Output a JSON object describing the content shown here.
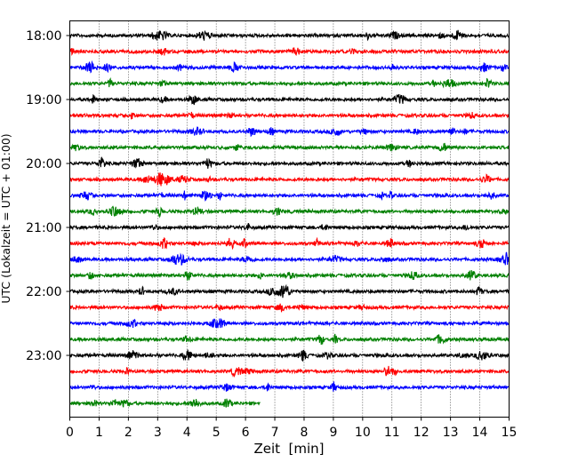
{
  "chart_data": {
    "type": "line",
    "title": "",
    "xlabel": "Zeit  [min]",
    "ylabel": "UTC (Lokalzeit = UTC + 01:00)",
    "xlim": [
      0,
      15
    ],
    "xticks": [
      "0",
      "1",
      "2",
      "3",
      "4",
      "5",
      "6",
      "7",
      "8",
      "9",
      "10",
      "11",
      "12",
      "13",
      "14",
      "15"
    ],
    "yticks": [
      "18:00",
      "19:00",
      "20:00",
      "21:00",
      "22:00",
      "23:00"
    ],
    "grid": "vertical dotted lines at each minute",
    "trace_colors": [
      "#000000",
      "#ff0000",
      "#0000ff",
      "#008000"
    ],
    "trace_interval_minutes": 15,
    "traces": [
      {
        "start": "18:00",
        "color": "#000000",
        "duration_min": 15
      },
      {
        "start": "18:15",
        "color": "#ff0000",
        "duration_min": 15
      },
      {
        "start": "18:30",
        "color": "#0000ff",
        "duration_min": 15
      },
      {
        "start": "18:45",
        "color": "#008000",
        "duration_min": 15
      },
      {
        "start": "19:00",
        "color": "#000000",
        "duration_min": 15
      },
      {
        "start": "19:15",
        "color": "#ff0000",
        "duration_min": 15
      },
      {
        "start": "19:30",
        "color": "#0000ff",
        "duration_min": 15
      },
      {
        "start": "19:45",
        "color": "#008000",
        "duration_min": 15
      },
      {
        "start": "20:00",
        "color": "#000000",
        "duration_min": 15
      },
      {
        "start": "20:15",
        "color": "#ff0000",
        "duration_min": 15
      },
      {
        "start": "20:30",
        "color": "#0000ff",
        "duration_min": 15
      },
      {
        "start": "20:45",
        "color": "#008000",
        "duration_min": 15
      },
      {
        "start": "21:00",
        "color": "#000000",
        "duration_min": 15
      },
      {
        "start": "21:15",
        "color": "#ff0000",
        "duration_min": 15
      },
      {
        "start": "21:30",
        "color": "#0000ff",
        "duration_min": 15
      },
      {
        "start": "21:45",
        "color": "#008000",
        "duration_min": 15
      },
      {
        "start": "22:00",
        "color": "#000000",
        "duration_min": 15
      },
      {
        "start": "22:15",
        "color": "#ff0000",
        "duration_min": 15
      },
      {
        "start": "22:30",
        "color": "#0000ff",
        "duration_min": 15
      },
      {
        "start": "22:45",
        "color": "#008000",
        "duration_min": 15
      },
      {
        "start": "23:00",
        "color": "#000000",
        "duration_min": 15
      },
      {
        "start": "23:15",
        "color": "#ff0000",
        "duration_min": 15
      },
      {
        "start": "23:30",
        "color": "#0000ff",
        "duration_min": 15
      },
      {
        "start": "23:45",
        "color": "#008000",
        "duration_min": 6.5
      }
    ]
  }
}
